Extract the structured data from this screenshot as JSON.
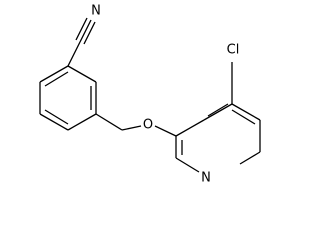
{
  "atoms": {
    "nitrile_n": "N",
    "ether_o": "O",
    "chlorine": "Cl",
    "pyridine_n": "N"
  }
}
